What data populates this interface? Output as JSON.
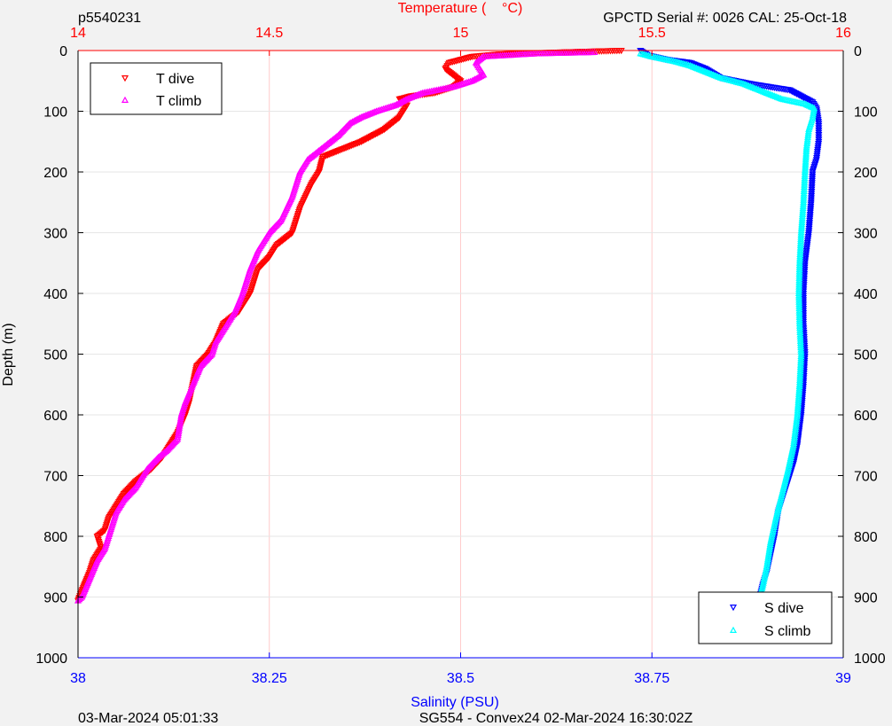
{
  "header": {
    "left_label": "p5540231",
    "right_label": "GPCTD Serial #: 0026 CAL: 25-Oct-18"
  },
  "footer": {
    "left_label": "03-Mar-2024 05:01:33",
    "center_label": "SG554 - Convex24 02-Mar-2024 16:30:02Z"
  },
  "colors": {
    "temperature_axis": "#ff0000",
    "salinity_axis": "#0000ff",
    "t_dive": "#ff0000",
    "t_climb": "#ff00ff",
    "s_dive": "#0000ff",
    "s_climb": "#00ffff",
    "grid": "#ffcccc"
  },
  "chart_data": {
    "type": "scatter",
    "y_axis": {
      "label": "Depth (m)",
      "range": [
        0,
        1000
      ],
      "reversed": true,
      "ticks": [
        "0",
        "100",
        "200",
        "300",
        "400",
        "500",
        "600",
        "700",
        "800",
        "900",
        "1000"
      ]
    },
    "top_axis": {
      "label": "Temperature (    °C)",
      "range": [
        14,
        16
      ],
      "ticks": [
        "14",
        "14.5",
        "15",
        "15.5",
        "16"
      ]
    },
    "bottom_axis": {
      "label": "Salinity (PSU)",
      "range": [
        38,
        39
      ],
      "ticks": [
        "38",
        "38.25",
        "38.5",
        "38.75",
        "39"
      ]
    },
    "grid": true,
    "series": [
      {
        "name": "T dive",
        "axis": "temperature",
        "marker": "triangle-down",
        "points": [
          [
            15.42,
            0
          ],
          [
            15.3,
            2
          ],
          [
            15.2,
            4
          ],
          [
            15.1,
            6
          ],
          [
            15.03,
            10
          ],
          [
            14.97,
            20
          ],
          [
            14.96,
            30
          ],
          [
            14.98,
            40
          ],
          [
            15.0,
            50
          ],
          [
            14.98,
            60
          ],
          [
            14.93,
            70
          ],
          [
            14.87,
            75
          ],
          [
            14.84,
            80
          ],
          [
            14.86,
            90
          ],
          [
            14.84,
            110
          ],
          [
            14.8,
            130
          ],
          [
            14.74,
            150
          ],
          [
            14.68,
            165
          ],
          [
            14.64,
            175
          ],
          [
            14.63,
            200
          ],
          [
            14.61,
            220
          ],
          [
            14.58,
            260
          ],
          [
            14.56,
            300
          ],
          [
            14.52,
            320
          ],
          [
            14.5,
            340
          ],
          [
            14.47,
            360
          ],
          [
            14.45,
            400
          ],
          [
            14.42,
            430
          ],
          [
            14.38,
            450
          ],
          [
            14.36,
            480
          ],
          [
            14.34,
            500
          ],
          [
            14.31,
            520
          ],
          [
            14.3,
            550
          ],
          [
            14.29,
            580
          ],
          [
            14.28,
            600
          ],
          [
            14.26,
            630
          ],
          [
            14.24,
            650
          ],
          [
            14.22,
            670
          ],
          [
            14.19,
            690
          ],
          [
            14.15,
            710
          ],
          [
            14.12,
            730
          ],
          [
            14.1,
            750
          ],
          [
            14.08,
            770
          ],
          [
            14.07,
            790
          ],
          [
            14.05,
            800
          ],
          [
            14.06,
            820
          ],
          [
            14.04,
            840
          ],
          [
            14.03,
            860
          ],
          [
            14.01,
            890
          ],
          [
            14.0,
            906
          ]
        ]
      },
      {
        "name": "T climb",
        "axis": "temperature",
        "marker": "triangle-up",
        "points": [
          [
            15.35,
            3
          ],
          [
            15.28,
            4
          ],
          [
            15.2,
            5
          ],
          [
            15.12,
            8
          ],
          [
            15.06,
            10
          ],
          [
            15.04,
            20
          ],
          [
            15.05,
            30
          ],
          [
            15.06,
            40
          ],
          [
            15.03,
            50
          ],
          [
            14.98,
            60
          ],
          [
            14.9,
            70
          ],
          [
            14.86,
            80
          ],
          [
            14.83,
            90
          ],
          [
            14.78,
            100
          ],
          [
            14.74,
            110
          ],
          [
            14.71,
            120
          ],
          [
            14.68,
            140
          ],
          [
            14.64,
            160
          ],
          [
            14.6,
            180
          ],
          [
            14.58,
            200
          ],
          [
            14.56,
            240
          ],
          [
            14.53,
            280
          ],
          [
            14.5,
            300
          ],
          [
            14.47,
            330
          ],
          [
            14.45,
            360
          ],
          [
            14.43,
            400
          ],
          [
            14.41,
            430
          ],
          [
            14.38,
            460
          ],
          [
            14.36,
            480
          ],
          [
            14.35,
            500
          ],
          [
            14.32,
            520
          ],
          [
            14.3,
            550
          ],
          [
            14.28,
            580
          ],
          [
            14.27,
            600
          ],
          [
            14.26,
            640
          ],
          [
            14.23,
            660
          ],
          [
            14.21,
            670
          ],
          [
            14.18,
            690
          ],
          [
            14.15,
            720
          ],
          [
            14.12,
            740
          ],
          [
            14.1,
            760
          ],
          [
            14.09,
            780
          ],
          [
            14.08,
            800
          ],
          [
            14.07,
            820
          ],
          [
            14.05,
            840
          ],
          [
            14.03,
            870
          ],
          [
            14.01,
            900
          ],
          [
            14.0,
            906
          ]
        ]
      },
      {
        "name": "S dive",
        "axis": "salinity",
        "marker": "triangle-down",
        "points": [
          [
            38.735,
            0
          ],
          [
            38.745,
            8
          ],
          [
            38.77,
            15
          ],
          [
            38.8,
            20
          ],
          [
            38.82,
            30
          ],
          [
            38.84,
            45
          ],
          [
            38.88,
            55
          ],
          [
            38.93,
            65
          ],
          [
            38.96,
            85
          ],
          [
            38.965,
            95
          ],
          [
            38.968,
            120
          ],
          [
            38.968,
            150
          ],
          [
            38.965,
            180
          ],
          [
            38.96,
            200
          ],
          [
            38.958,
            250
          ],
          [
            38.955,
            300
          ],
          [
            38.95,
            350
          ],
          [
            38.948,
            400
          ],
          [
            38.948,
            450
          ],
          [
            38.95,
            500
          ],
          [
            38.948,
            550
          ],
          [
            38.945,
            600
          ],
          [
            38.94,
            650
          ],
          [
            38.935,
            680
          ],
          [
            38.925,
            720
          ],
          [
            38.915,
            760
          ],
          [
            38.91,
            800
          ],
          [
            38.905,
            830
          ],
          [
            38.9,
            860
          ],
          [
            38.895,
            880
          ],
          [
            38.89,
            906
          ]
        ]
      },
      {
        "name": "S climb",
        "axis": "salinity",
        "marker": "triangle-up",
        "points": [
          [
            38.735,
            5
          ],
          [
            38.75,
            10
          ],
          [
            38.78,
            18
          ],
          [
            38.8,
            25
          ],
          [
            38.82,
            35
          ],
          [
            38.84,
            45
          ],
          [
            38.87,
            55
          ],
          [
            38.9,
            70
          ],
          [
            38.92,
            80
          ],
          [
            38.95,
            88
          ],
          [
            38.962,
            95
          ],
          [
            38.96,
            110
          ],
          [
            38.955,
            130
          ],
          [
            38.952,
            160
          ],
          [
            38.95,
            200
          ],
          [
            38.948,
            250
          ],
          [
            38.945,
            300
          ],
          [
            38.943,
            350
          ],
          [
            38.942,
            400
          ],
          [
            38.943,
            450
          ],
          [
            38.945,
            500
          ],
          [
            38.943,
            550
          ],
          [
            38.94,
            600
          ],
          [
            38.935,
            650
          ],
          [
            38.928,
            690
          ],
          [
            38.92,
            730
          ],
          [
            38.912,
            770
          ],
          [
            38.905,
            810
          ],
          [
            38.9,
            850
          ],
          [
            38.895,
            880
          ],
          [
            38.89,
            906
          ]
        ]
      }
    ],
    "legends": [
      {
        "placement": "top-left",
        "entries": [
          "T dive",
          "T climb"
        ]
      },
      {
        "placement": "bottom-right",
        "entries": [
          "S dive",
          "S climb"
        ]
      }
    ]
  }
}
